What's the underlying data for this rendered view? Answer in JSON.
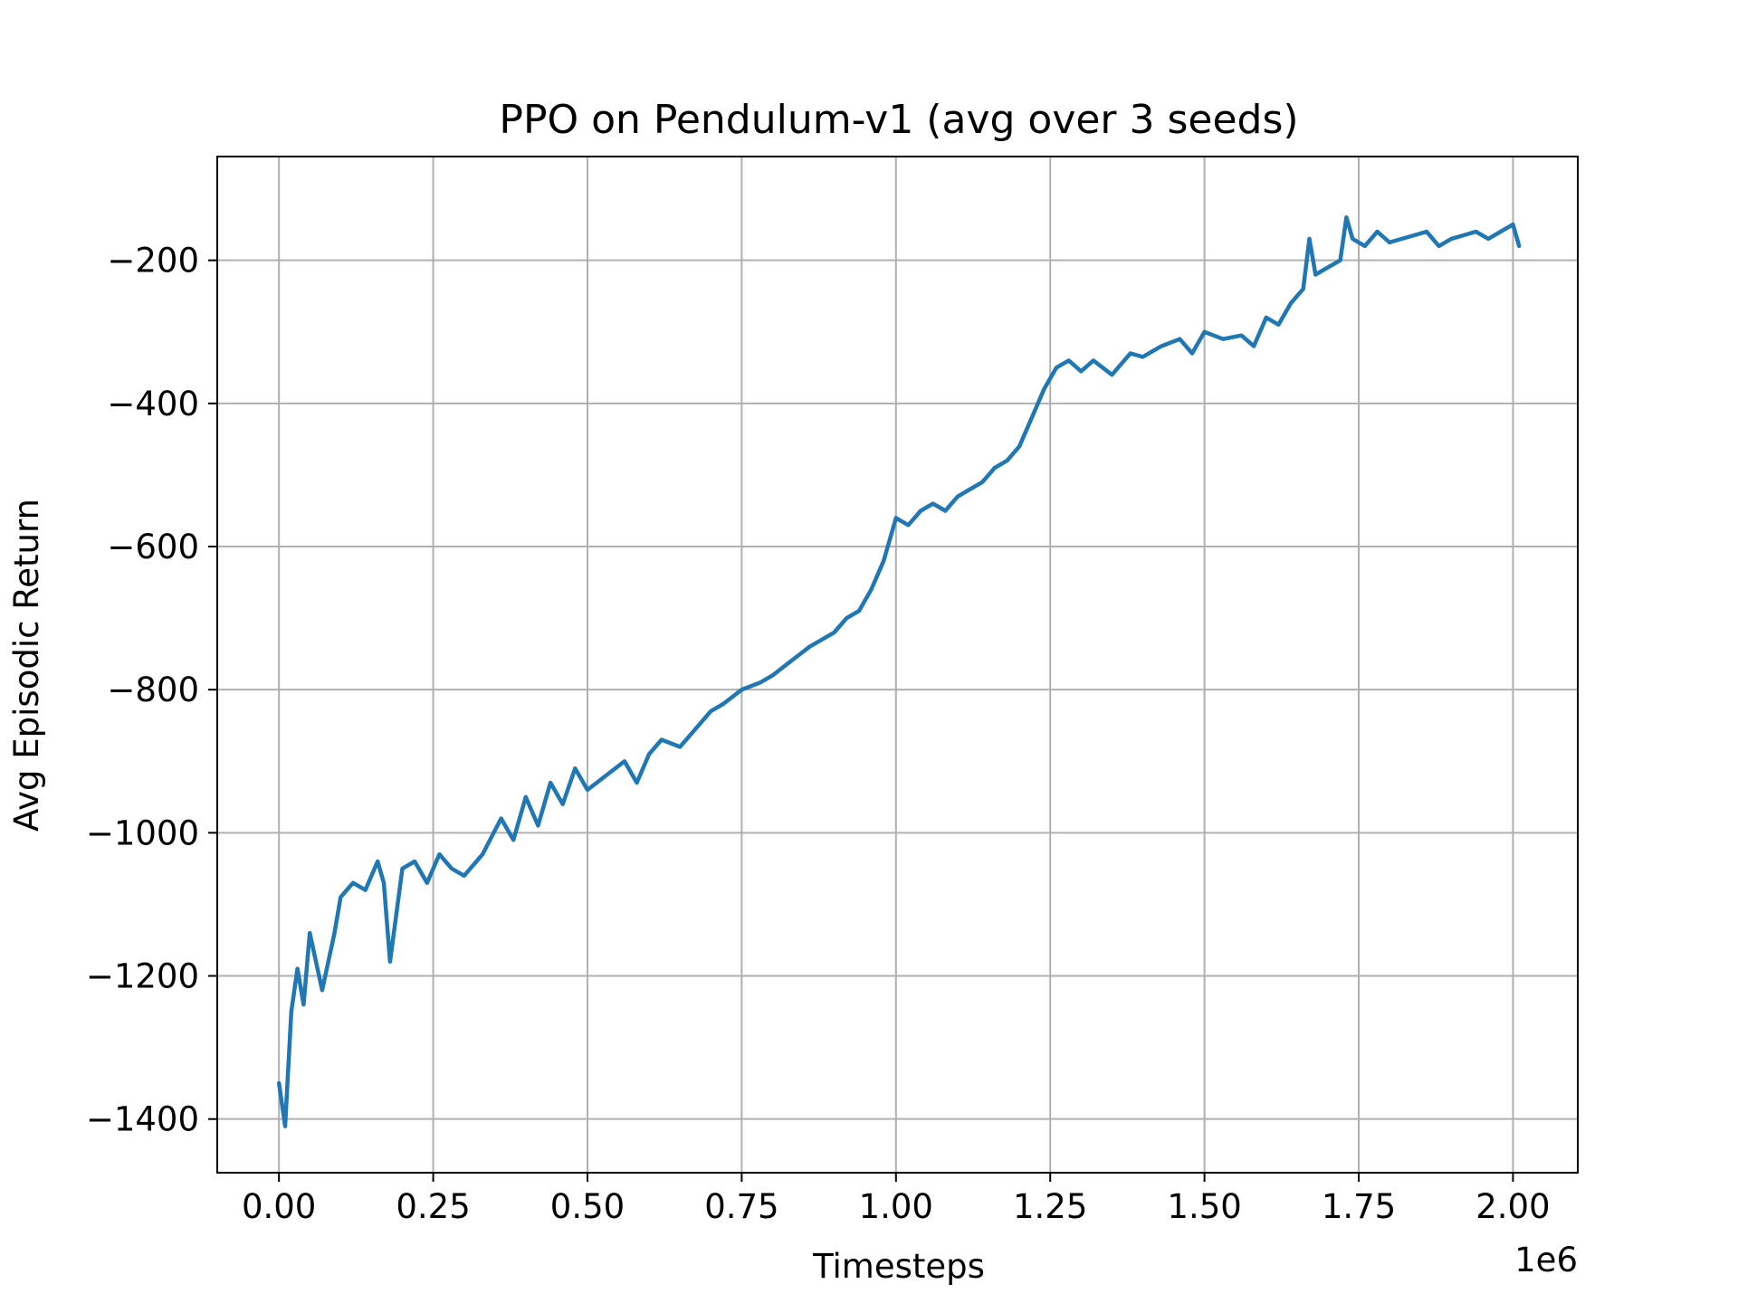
{
  "chart_data": {
    "type": "line",
    "title": "PPO on Pendulum-v1 (avg over 3 seeds)",
    "xlabel": "Timesteps",
    "ylabel": "Avg Episodic Return",
    "x_offset_label": "1e6",
    "xlim": [
      -0.1,
      2.105
    ],
    "ylim": [
      -1475,
      -55
    ],
    "x_ticks": [
      0.0,
      0.25,
      0.5,
      0.75,
      1.0,
      1.25,
      1.5,
      1.75,
      2.0
    ],
    "x_tick_labels": [
      "0.00",
      "0.25",
      "0.50",
      "0.75",
      "1.00",
      "1.25",
      "1.50",
      "1.75",
      "2.00"
    ],
    "y_ticks": [
      -1400,
      -1200,
      -1000,
      -800,
      -600,
      -400,
      -200
    ],
    "y_tick_labels": [
      "−1400",
      "−1200",
      "−1000",
      "−800",
      "−600",
      "−400",
      "−200"
    ],
    "grid": true,
    "series": [
      {
        "color": "#1f77b4",
        "x": [
          0.0,
          0.01,
          0.02,
          0.03,
          0.04,
          0.05,
          0.07,
          0.09,
          0.1,
          0.12,
          0.14,
          0.16,
          0.17,
          0.18,
          0.2,
          0.22,
          0.24,
          0.26,
          0.28,
          0.3,
          0.33,
          0.36,
          0.38,
          0.4,
          0.42,
          0.44,
          0.46,
          0.48,
          0.5,
          0.53,
          0.56,
          0.58,
          0.6,
          0.62,
          0.65,
          0.68,
          0.7,
          0.72,
          0.75,
          0.78,
          0.8,
          0.83,
          0.86,
          0.88,
          0.9,
          0.92,
          0.94,
          0.96,
          0.98,
          1.0,
          1.02,
          1.04,
          1.06,
          1.08,
          1.1,
          1.12,
          1.14,
          1.16,
          1.18,
          1.2,
          1.22,
          1.24,
          1.26,
          1.28,
          1.3,
          1.32,
          1.35,
          1.38,
          1.4,
          1.43,
          1.46,
          1.48,
          1.5,
          1.53,
          1.56,
          1.58,
          1.6,
          1.62,
          1.64,
          1.66,
          1.67,
          1.68,
          1.7,
          1.72,
          1.73,
          1.74,
          1.76,
          1.78,
          1.8,
          1.82,
          1.84,
          1.86,
          1.88,
          1.9,
          1.92,
          1.94,
          1.96,
          1.98,
          2.0,
          2.01
        ],
        "y": [
          -1350,
          -1410,
          -1250,
          -1190,
          -1240,
          -1140,
          -1220,
          -1140,
          -1090,
          -1070,
          -1080,
          -1040,
          -1070,
          -1180,
          -1050,
          -1040,
          -1070,
          -1030,
          -1050,
          -1060,
          -1030,
          -980,
          -1010,
          -950,
          -990,
          -930,
          -960,
          -910,
          -940,
          -920,
          -900,
          -930,
          -890,
          -870,
          -880,
          -850,
          -830,
          -820,
          -800,
          -790,
          -780,
          -760,
          -740,
          -730,
          -720,
          -700,
          -690,
          -660,
          -620,
          -560,
          -570,
          -550,
          -540,
          -550,
          -530,
          -520,
          -510,
          -490,
          -480,
          -460,
          -420,
          -380,
          -350,
          -340,
          -355,
          -340,
          -360,
          -330,
          -335,
          -320,
          -310,
          -330,
          -300,
          -310,
          -305,
          -320,
          -280,
          -290,
          -260,
          -240,
          -170,
          -220,
          -210,
          -200,
          -140,
          -170,
          -180,
          -160,
          -175,
          -170,
          -165,
          -160,
          -180,
          -170,
          -165,
          -160,
          -170,
          -160,
          -150,
          -180
        ]
      }
    ]
  }
}
